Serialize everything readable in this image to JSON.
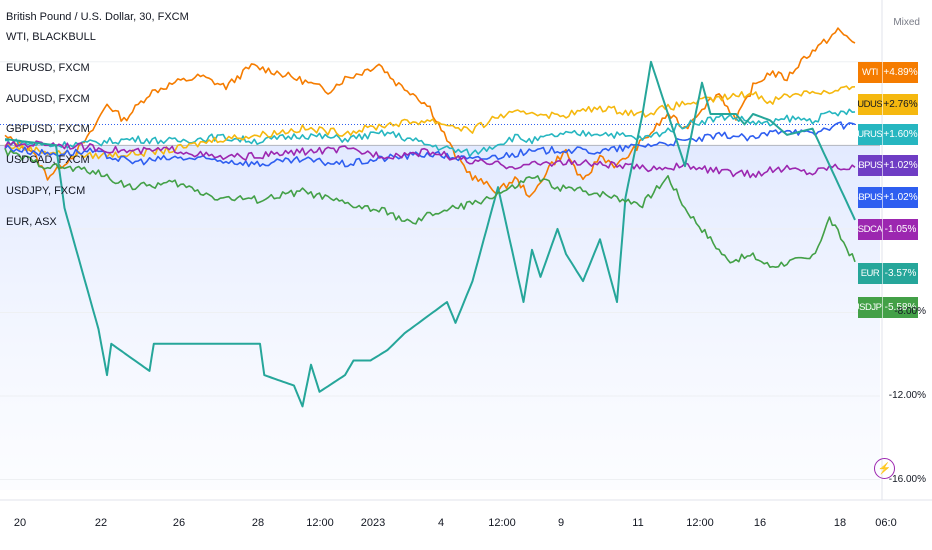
{
  "chart_data": {
    "type": "line",
    "title": "British Pound / U.S. Dollar, 30, FXCM",
    "scale_mode": "Mixed",
    "x_ticks": [
      "20",
      "22",
      "26",
      "28",
      "12:00",
      "2023",
      "4",
      "12:00",
      "9",
      "11",
      "12:00",
      "16",
      "18",
      "06:0"
    ],
    "y_ticks": [
      "-8.00%",
      "-12.00%",
      "-16.00%"
    ],
    "ylim": [
      -16.5,
      6
    ],
    "series": [
      {
        "name": "WTI, BLACKBULL",
        "tag": "WTI",
        "last": "+4.89%",
        "color": "#f57c00",
        "x": [
          0,
          3,
          5,
          8,
          10,
          12,
          14,
          17,
          20,
          23,
          26,
          29,
          32,
          35,
          38,
          40,
          42,
          44,
          46,
          48,
          50,
          53,
          55,
          58,
          60,
          62,
          64,
          66,
          68,
          70,
          72,
          74,
          76,
          78,
          80,
          82,
          84,
          86,
          88,
          90,
          92,
          94,
          96,
          98,
          100
        ],
        "y": [
          0.4,
          -0.2,
          -1.5,
          -0.5,
          0.5,
          2.0,
          1.2,
          2.5,
          3.0,
          3.3,
          2.8,
          3.8,
          3.5,
          3.1,
          2.6,
          3.2,
          3.5,
          3.9,
          3.0,
          2.5,
          1.8,
          -0.5,
          -1.5,
          -2.2,
          -1.6,
          -2.5,
          -1.0,
          -0.3,
          -1.8,
          -0.5,
          -1.0,
          -0.2,
          0.6,
          1.5,
          0.8,
          1.8,
          2.5,
          1.2,
          2.8,
          3.5,
          3.2,
          4.2,
          4.8,
          5.5,
          4.9
        ]
      },
      {
        "name": "EURUSD, FXCM",
        "tag": "EURUSD",
        "last": "+1.60%",
        "color": "#26b6c0",
        "x": [
          0,
          5,
          10,
          15,
          20,
          25,
          30,
          35,
          40,
          45,
          50,
          55,
          60,
          62,
          65,
          70,
          72,
          75,
          80,
          85,
          88,
          90,
          92,
          95,
          97,
          100
        ],
        "y": [
          0.2,
          0.0,
          0.1,
          0.3,
          0.2,
          0.4,
          0.2,
          0.5,
          0.3,
          0.6,
          0.0,
          -0.4,
          0.4,
          0.2,
          0.5,
          0.6,
          0.5,
          0.3,
          1.0,
          1.4,
          1.1,
          1.0,
          1.3,
          1.2,
          1.5,
          1.6
        ]
      },
      {
        "name": "AUDUSD, FXCM",
        "tag": "AUDUSD",
        "last": "+2.76%",
        "color": "#f5b80f",
        "x": [
          0,
          5,
          10,
          15,
          20,
          25,
          30,
          35,
          40,
          45,
          50,
          55,
          58,
          62,
          65,
          70,
          75,
          80,
          85,
          88,
          90,
          92,
          95,
          97,
          100
        ],
        "y": [
          0.0,
          -0.3,
          -0.5,
          -0.4,
          -0.2,
          0.3,
          0.5,
          0.8,
          0.6,
          1.0,
          1.2,
          0.7,
          1.4,
          1.6,
          1.4,
          1.8,
          1.5,
          2.0,
          2.3,
          2.5,
          2.1,
          2.4,
          2.6,
          2.5,
          2.8
        ]
      },
      {
        "name": "GBPUSD, FXCM",
        "tag": "GBPUSD",
        "last": "+1.02%",
        "color": "#2e5ef0",
        "x": [
          0,
          5,
          10,
          15,
          20,
          25,
          30,
          35,
          40,
          45,
          50,
          55,
          60,
          65,
          70,
          75,
          80,
          85,
          88,
          90,
          92,
          95,
          97,
          100
        ],
        "y": [
          -0.1,
          -0.4,
          -0.3,
          -0.8,
          -0.6,
          -0.7,
          -0.9,
          -0.7,
          -0.9,
          -0.6,
          -0.4,
          -0.7,
          -0.4,
          -0.2,
          -0.3,
          0.0,
          0.2,
          0.5,
          0.3,
          0.6,
          0.8,
          0.5,
          0.9,
          1.0
        ]
      },
      {
        "name": "USDCAD, FXCM",
        "tag": "USDCAD",
        "last": "-1.05%",
        "color": "#9c27b0",
        "x": [
          0,
          5,
          10,
          15,
          20,
          25,
          30,
          35,
          40,
          45,
          50,
          55,
          60,
          65,
          70,
          75,
          80,
          85,
          88,
          90,
          92,
          95,
          97,
          100
        ],
        "y": [
          0.0,
          0.1,
          -0.1,
          -0.3,
          -0.2,
          -0.6,
          -0.5,
          -0.3,
          -0.2,
          -0.5,
          -0.3,
          -0.8,
          -1.0,
          -0.8,
          -0.9,
          -1.1,
          -1.0,
          -1.3,
          -1.4,
          -1.2,
          -1.1,
          -1.3,
          -1.0,
          -1.05
        ]
      },
      {
        "name": "EUR, ASX",
        "tag": "EUR",
        "last": "-3.57%",
        "color": "#26a69a",
        "x": [
          0,
          6,
          7,
          11,
          12,
          12.5,
          17,
          17.5,
          30,
          30.5,
          34,
          35,
          36,
          37,
          40,
          41,
          43,
          45,
          47,
          52,
          53,
          55,
          58,
          61,
          62,
          63,
          65,
          66,
          68,
          70,
          72,
          73,
          75,
          76,
          80,
          82,
          83,
          86,
          87,
          88,
          90,
          92,
          95,
          100
        ],
        "y": [
          0.3,
          0.0,
          -3.0,
          -8.8,
          -11.0,
          -9.5,
          -10.8,
          -9.5,
          -9.5,
          -11.0,
          -11.5,
          -12.5,
          -10.5,
          -11.8,
          -11.0,
          -10.3,
          -10.3,
          -9.8,
          -9.0,
          -7.5,
          -8.5,
          -6.5,
          -2.0,
          -7.5,
          -5.0,
          -6.3,
          -4.0,
          -5.2,
          -6.5,
          -4.5,
          -7.5,
          -2.5,
          1.5,
          4.0,
          -1.0,
          3.0,
          1.5,
          1.5,
          1.0,
          1.5,
          1.2,
          0.5,
          0.8,
          -3.57
        ]
      },
      {
        "name": "USDJPY, FXCM",
        "tag": "USDJPY",
        "last": "-5.58%",
        "color": "#43a047",
        "x": [
          0,
          5,
          10,
          15,
          20,
          25,
          30,
          35,
          40,
          45,
          48,
          50,
          55,
          60,
          62,
          65,
          70,
          75,
          78,
          80,
          82,
          85,
          88,
          90,
          92,
          95,
          97,
          100
        ],
        "y": [
          -0.3,
          -1.0,
          -1.2,
          -2.0,
          -1.8,
          -2.5,
          -2.6,
          -2.2,
          -2.8,
          -3.2,
          -3.8,
          -3.3,
          -2.8,
          -2.0,
          -1.5,
          -2.0,
          -2.3,
          -2.8,
          -1.5,
          -3.0,
          -4.0,
          -5.5,
          -5.3,
          -5.8,
          -5.6,
          -5.4,
          -3.5,
          -5.58
        ]
      }
    ],
    "legend_order": [
      "WTI, BLACKBULL",
      "EURUSD, FXCM",
      "AUDUSD, FXCM",
      "GBPUSD, FXCM",
      "USDCAD, FXCM",
      "USDJPY, FXCM",
      "EUR, ASX"
    ],
    "tag_order": [
      "WTI",
      "AUDUSD",
      "EURUSD",
      "GBPUSD",
      "GBPUSD2",
      "USDCAD",
      "EUR",
      "USDJPY"
    ],
    "tag_extra": {
      "GBPUSD2": {
        "tag": "GBPUSD",
        "last": "+1.02%",
        "color": "#2e5ef0"
      }
    },
    "tag_overrides": {
      "GBPUSD": {
        "color": "#6f3dc4"
      }
    }
  }
}
